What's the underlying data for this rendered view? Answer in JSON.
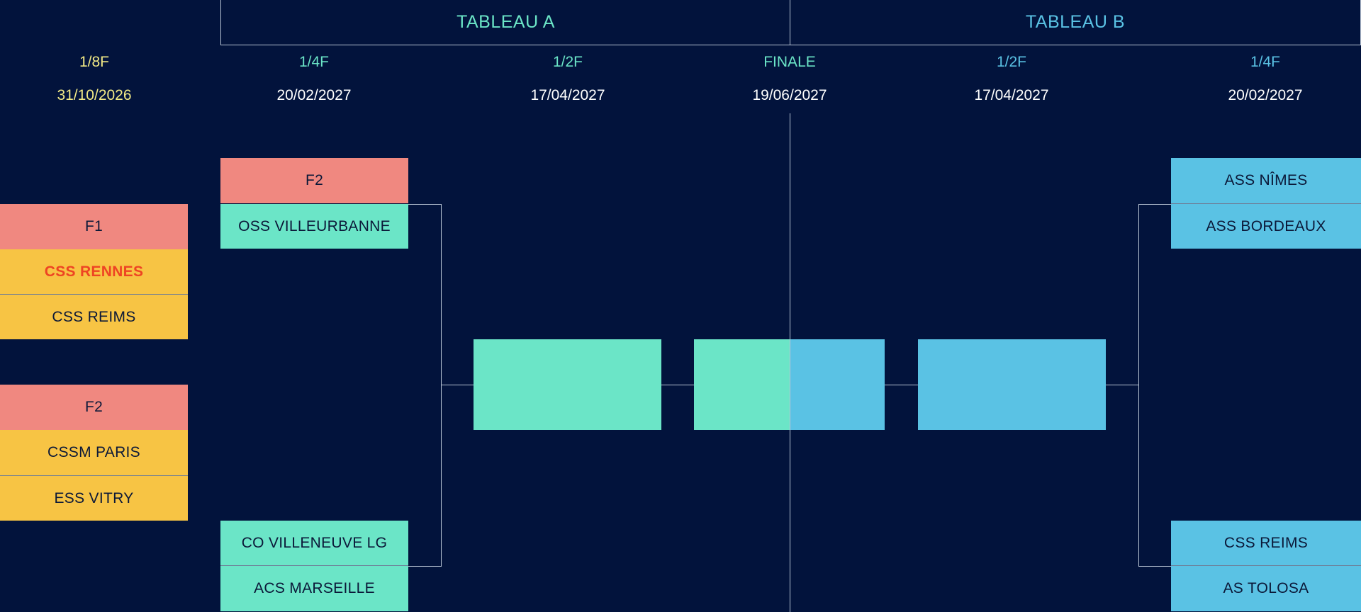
{
  "colors": {
    "background": "#02133c",
    "pink": "#f08880",
    "yellow": "#f7c444",
    "tableau_a": "#6be5c7",
    "tableau_b": "#5ac2e4",
    "highlight": "#ee4423",
    "round_yellow": "#f2ea86"
  },
  "tableaux": {
    "a": "TABLEAU A",
    "b": "TABLEAU B"
  },
  "rounds": [
    {
      "label": "1/8F",
      "date": "31/10/2026"
    },
    {
      "label": "1/4F",
      "date": "20/02/2027"
    },
    {
      "label": "1/2F",
      "date": "17/04/2027"
    },
    {
      "label": "FINALE",
      "date": "19/06/2027"
    },
    {
      "label": "1/2F",
      "date": "17/04/2027"
    },
    {
      "label": "1/4F",
      "date": "20/02/2027"
    }
  ],
  "eighth": {
    "group1": {
      "label": "F1",
      "team1": "CSS RENNES",
      "team2": "CSS REIMS"
    },
    "group2": {
      "label": "F2",
      "team1": "CSSM PARIS",
      "team2": "ESS VITRY"
    }
  },
  "tableau_a": {
    "qf_top": {
      "label": "F2",
      "team": "OSS VILLEURBANNE"
    },
    "qf_bottom": {
      "team1": "CO VILLENEUVE LG",
      "team2": "ACS MARSEILLE"
    },
    "semi": "",
    "final": ""
  },
  "tableau_b": {
    "qf_top": {
      "team1": "ASS NÎMES",
      "team2": "ASS BORDEAUX"
    },
    "qf_bottom": {
      "team1": "CSS REIMS",
      "team2": "AS TOLOSA"
    },
    "semi": "",
    "final": ""
  }
}
